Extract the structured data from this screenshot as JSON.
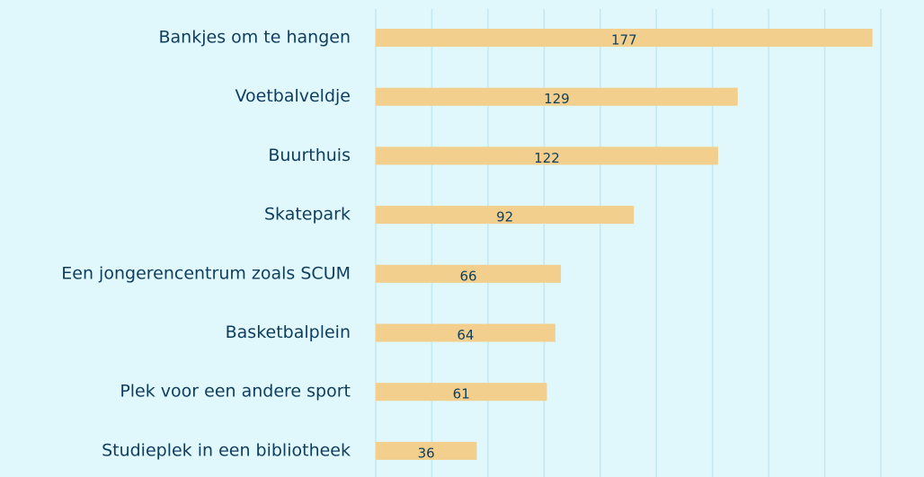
{
  "chart_data": {
    "type": "bar",
    "orientation": "horizontal",
    "categories": [
      "Bankjes om te hangen",
      "Voetbalveldje",
      "Buurthuis",
      "Skatepark",
      "Een jongerencentrum zoals SCUM",
      "Basketbalplein",
      "Plek voor een andere sport",
      "Studieplek in een bibliotheek"
    ],
    "values": [
      177,
      129,
      122,
      92,
      66,
      64,
      61,
      36
    ],
    "color": "#f2cf8c",
    "xlim": [
      0,
      180
    ],
    "xticks": [
      0,
      20,
      40,
      60,
      80,
      100,
      120,
      140,
      160,
      180
    ],
    "grid": true
  }
}
